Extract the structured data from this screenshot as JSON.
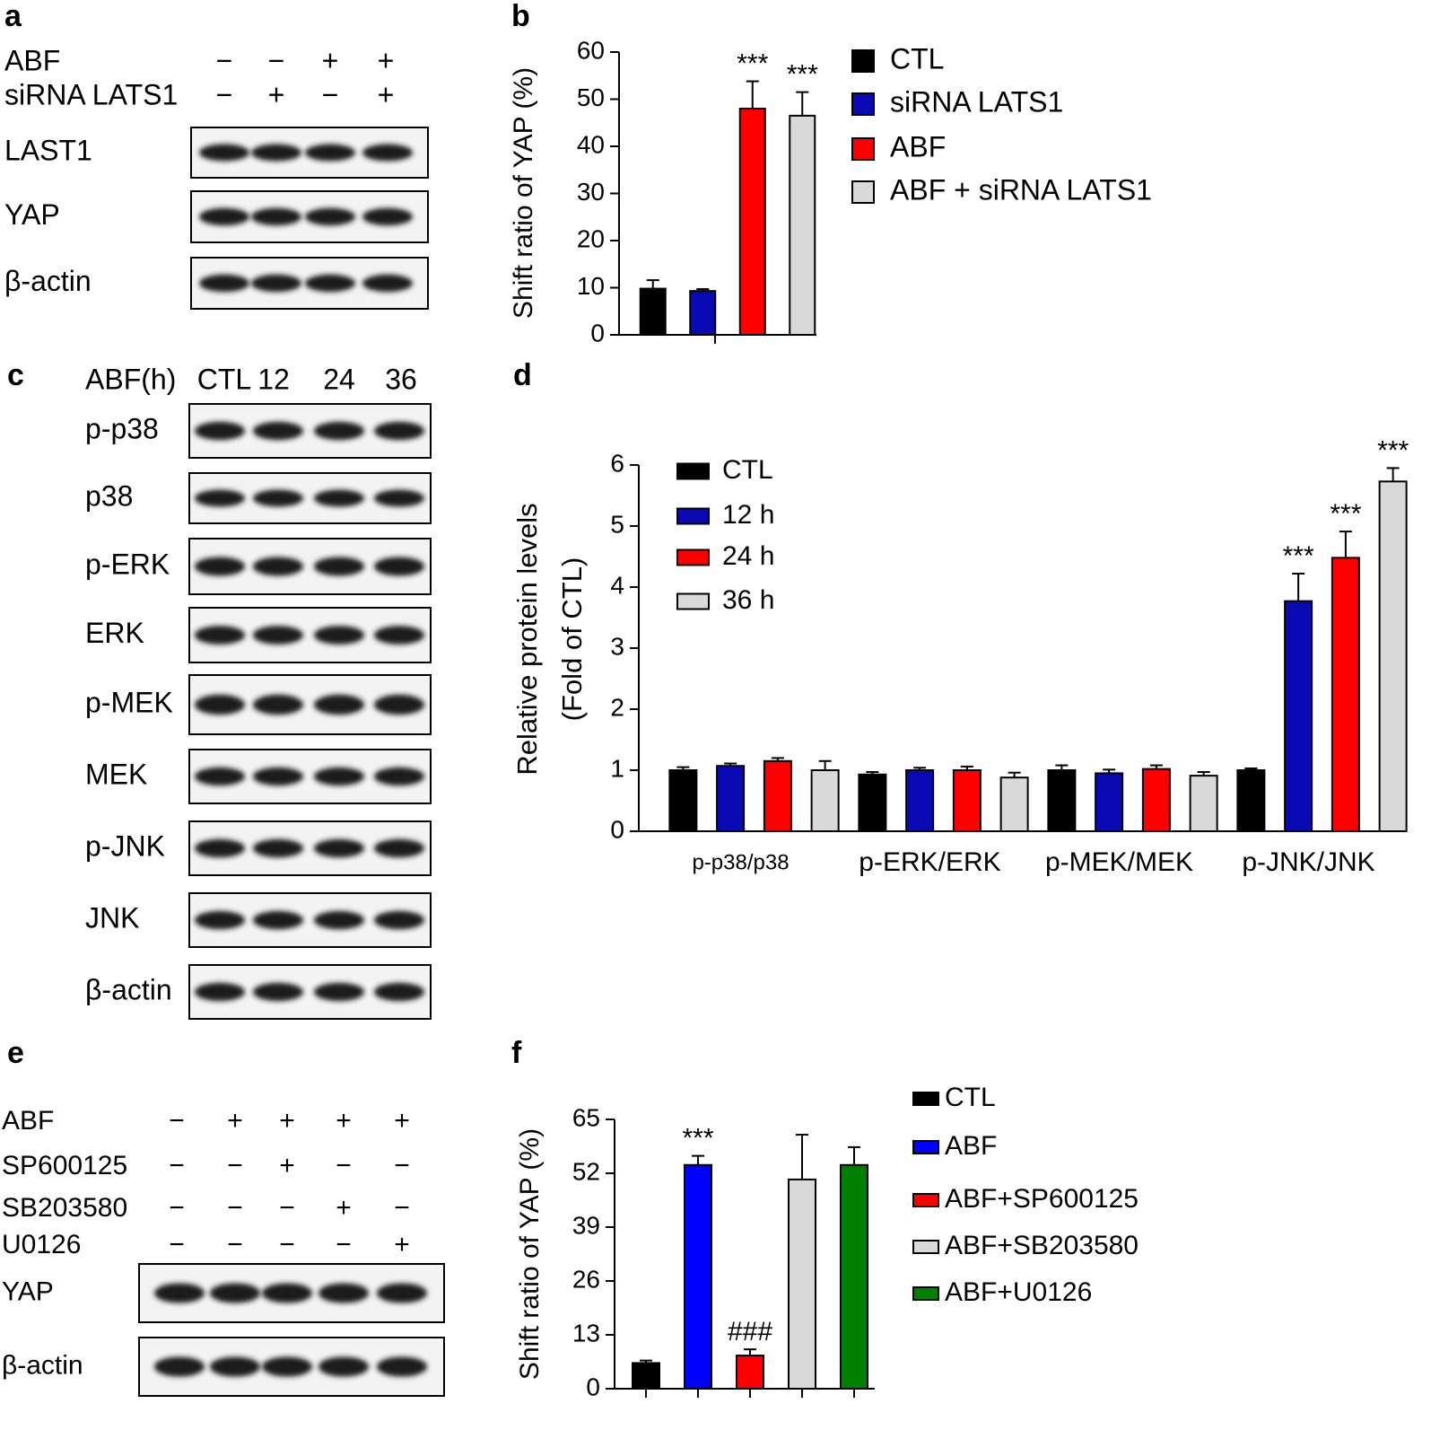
{
  "blots": [
    {
      "panel": "a",
      "conditions": [
        {
          "name": "ABF",
          "signs": [
            "−",
            "−",
            "+",
            "+"
          ]
        },
        {
          "name": "siRNA LATS1",
          "signs": [
            "−",
            "+",
            "−",
            "+"
          ]
        }
      ],
      "rows": [
        "LAST1",
        "YAP",
        "β-actin"
      ]
    },
    {
      "panel": "c",
      "header": "ABF(h)",
      "lanes": [
        "CTL",
        "12",
        "24",
        "36"
      ],
      "rows": [
        "p-p38",
        "p38",
        "p-ERK",
        "ERK",
        "p-MEK",
        "MEK",
        "p-JNK",
        "JNK",
        "β-actin"
      ]
    },
    {
      "panel": "e",
      "conditions": [
        {
          "name": "ABF",
          "signs": [
            "−",
            "+",
            "+",
            "+",
            "+"
          ]
        },
        {
          "name": "SP600125",
          "signs": [
            "−",
            "−",
            "+",
            "−",
            "−"
          ]
        },
        {
          "name": "SB203580",
          "signs": [
            "−",
            "−",
            "−",
            "+",
            "−"
          ]
        },
        {
          "name": "U0126",
          "signs": [
            "−",
            "−",
            "−",
            "−",
            "+"
          ]
        }
      ],
      "rows": [
        "YAP",
        "β-actin"
      ]
    }
  ],
  "chart_data": [
    {
      "panel": "b",
      "type": "bar",
      "y_label": "Shift ratio of YAP (%)",
      "categories": [
        null
      ],
      "ylim": [
        0,
        60
      ],
      "yticks": [
        0,
        10,
        20,
        30,
        40,
        50,
        60
      ],
      "series": [
        {
          "name": "CTL",
          "color": "#000000",
          "values": [
            9.8
          ],
          "errors": [
            1.8
          ],
          "annotations": [
            null
          ]
        },
        {
          "name": "siRNA LATS1",
          "color": "#0a0ab4",
          "values": [
            9.3
          ],
          "errors": [
            0.4
          ],
          "annotations": [
            null
          ]
        },
        {
          "name": "ABF",
          "color": "#ff0000",
          "values": [
            48
          ],
          "errors": [
            5.8
          ],
          "annotations": [
            "***"
          ]
        },
        {
          "name": "ABF + siRNA LATS1",
          "color": "#d9d9d9",
          "values": [
            46.5
          ],
          "errors": [
            5.0
          ],
          "annotations": [
            "***"
          ]
        }
      ]
    },
    {
      "panel": "d",
      "type": "bar",
      "y_label": [
        "Relative protein levels",
        "(Fold of CTL)"
      ],
      "categories": [
        "p-p38/p38",
        "p-ERK/ERK",
        "p-MEK/MEK",
        "p-JNK/JNK"
      ],
      "ylim": [
        0,
        6
      ],
      "yticks": [
        0,
        1,
        2,
        3,
        4,
        5,
        6
      ],
      "series": [
        {
          "name": "CTL",
          "color": "#000000",
          "values": [
            1.0,
            0.93,
            1.0,
            1.0
          ],
          "errors": [
            0.05,
            0.04,
            0.08,
            0.03
          ],
          "annotations": [
            null,
            null,
            null,
            null
          ]
        },
        {
          "name": "12 h",
          "color": "#0a0ab4",
          "values": [
            1.07,
            1.0,
            0.95,
            3.77
          ],
          "errors": [
            0.04,
            0.04,
            0.06,
            0.45
          ],
          "annotations": [
            null,
            null,
            null,
            "***"
          ]
        },
        {
          "name": "24 h",
          "color": "#ff0000",
          "values": [
            1.15,
            1.0,
            1.02,
            4.48
          ],
          "errors": [
            0.05,
            0.06,
            0.06,
            0.43
          ],
          "annotations": [
            null,
            null,
            null,
            "***"
          ]
        },
        {
          "name": "36 h",
          "color": "#d9d9d9",
          "values": [
            1.0,
            0.88,
            0.91,
            5.73
          ],
          "errors": [
            0.15,
            0.08,
            0.06,
            0.22
          ],
          "annotations": [
            null,
            null,
            null,
            "***"
          ]
        }
      ]
    },
    {
      "panel": "f",
      "type": "bar",
      "y_label": "Shift ratio of YAP (%)",
      "categories": [
        null
      ],
      "ylim": [
        0,
        65
      ],
      "yticks": [
        0,
        13,
        26,
        39,
        52,
        65
      ],
      "series": [
        {
          "name": "CTL",
          "color": "#000000",
          "values": [
            6.2
          ],
          "errors": [
            0.6
          ],
          "annotations": [
            null
          ]
        },
        {
          "name": "ABF",
          "color": "#0000ff",
          "values": [
            54
          ],
          "errors": [
            2.2
          ],
          "annotations": [
            "***"
          ]
        },
        {
          "name": "ABF+SP600125",
          "color": "#ff0000",
          "values": [
            8
          ],
          "errors": [
            1.5
          ],
          "annotations": [
            "###"
          ]
        },
        {
          "name": "ABF+SB203580",
          "color": "#d9d9d9",
          "values": [
            50.5
          ],
          "errors": [
            10.8
          ],
          "annotations": [
            null
          ]
        },
        {
          "name": "ABF+U0126",
          "color": "#008000",
          "values": [
            54
          ],
          "errors": [
            4.3
          ],
          "annotations": [
            null
          ]
        }
      ]
    }
  ]
}
